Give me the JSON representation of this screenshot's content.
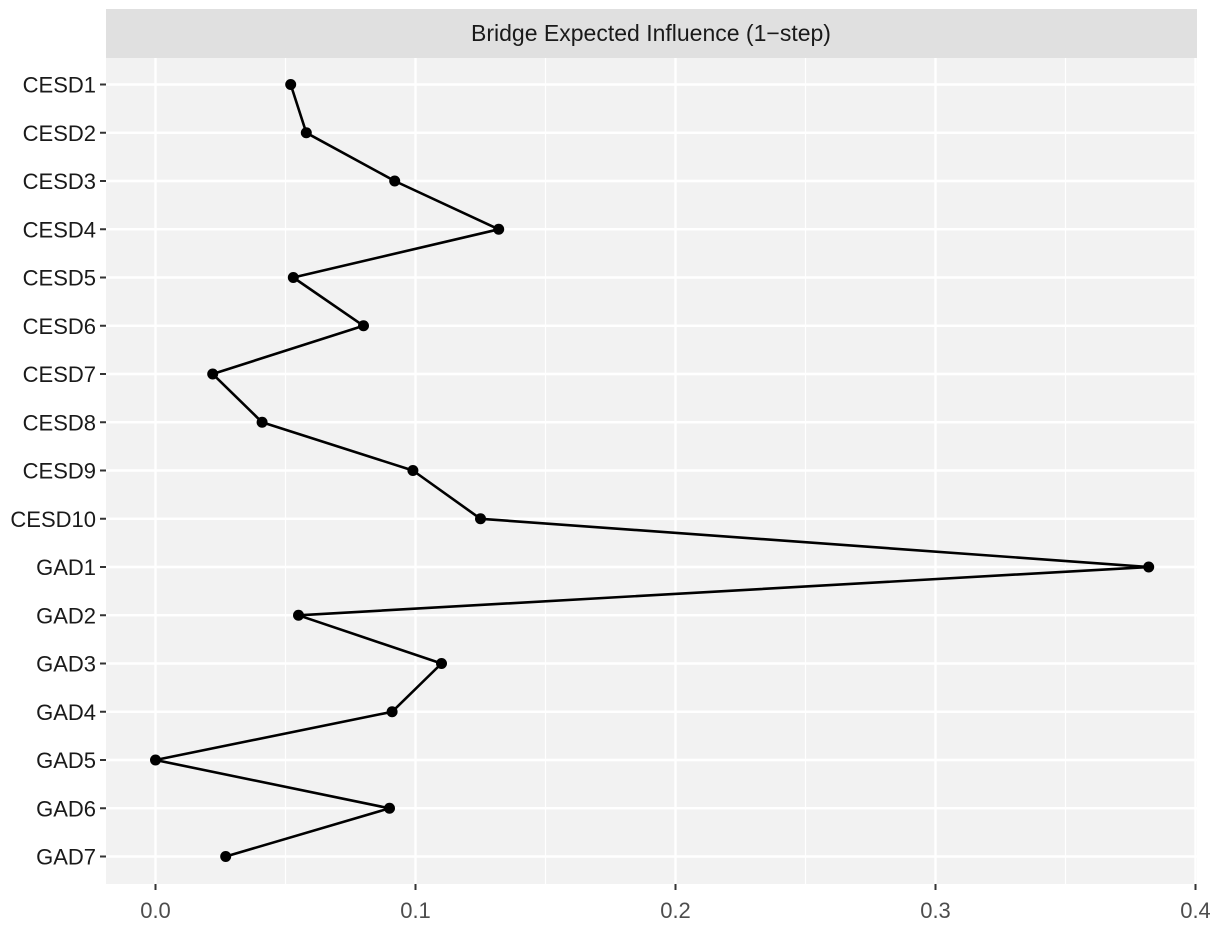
{
  "chart_data": {
    "type": "line",
    "facet_title": "Bridge Expected Influence (1−step)",
    "orientation": "horizontal",
    "categories": [
      "CESD1",
      "CESD2",
      "CESD3",
      "CESD4",
      "CESD5",
      "CESD6",
      "CESD7",
      "CESD8",
      "CESD9",
      "CESD10",
      "GAD1",
      "GAD2",
      "GAD3",
      "GAD4",
      "GAD5",
      "GAD6",
      "GAD7"
    ],
    "values": [
      0.052,
      0.058,
      0.092,
      0.132,
      0.053,
      0.08,
      0.022,
      0.041,
      0.099,
      0.125,
      0.382,
      0.055,
      0.11,
      0.091,
      0.0,
      0.09,
      0.027
    ],
    "xlim": [
      0.0,
      0.4
    ],
    "x_ticks": [
      "0.0",
      "0.1",
      "0.2",
      "0.3",
      "0.4"
    ],
    "xlabel": "",
    "ylabel": "",
    "grid": true,
    "colors": {
      "panel": "#f2f2f2",
      "strip": "#e0e0e0",
      "grid": "#ffffff",
      "line": "#000000"
    }
  }
}
